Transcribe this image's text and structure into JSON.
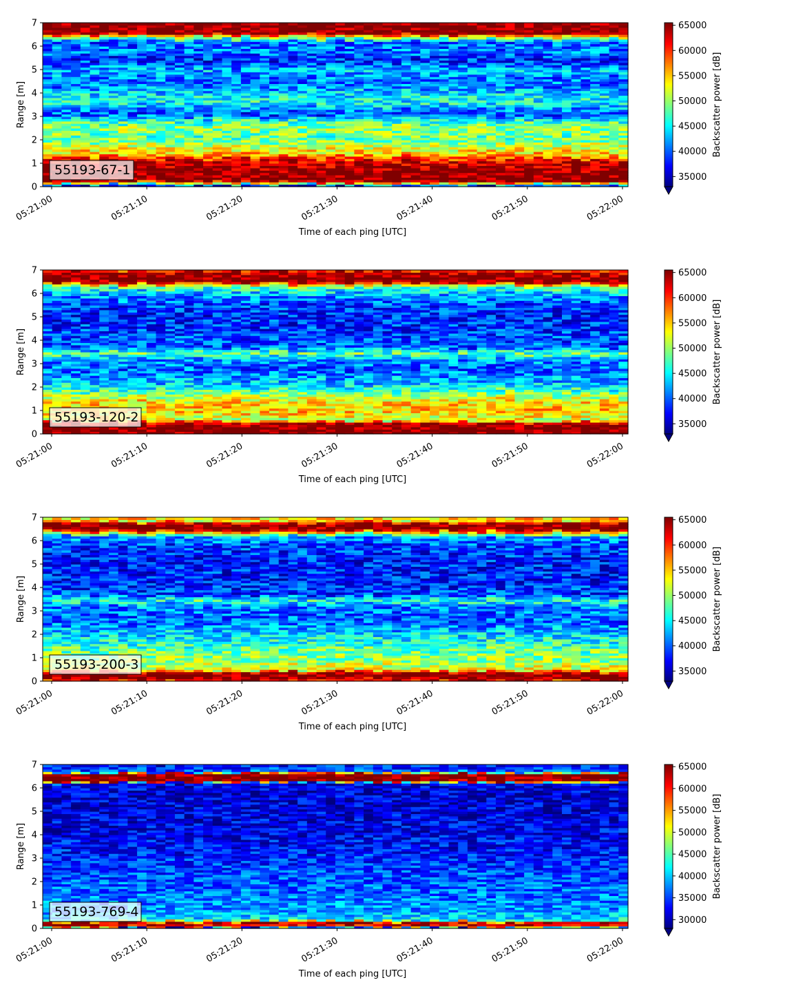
{
  "chart_data": [
    {
      "type": "heatmap",
      "label": "55193-67-1",
      "xlabel": "Time of each ping [UTC]",
      "ylabel": "Range [m]",
      "xticks": [
        "05:21:00",
        "05:21:10",
        "05:21:20",
        "05:21:30",
        "05:21:40",
        "05:21:50",
        "05:22:00"
      ],
      "xlim_seconds": [
        0,
        60.6
      ],
      "yticks": [
        0,
        1,
        2,
        3,
        4,
        5,
        6,
        7
      ],
      "ylim": [
        0,
        7
      ],
      "colorbar_label": "Backscatter power [dB]",
      "colorbar_ticks": [
        35000,
        40000,
        45000,
        50000,
        55000,
        60000,
        65000
      ],
      "colorbar_range": [
        33000,
        65500
      ],
      "colormap": "jet",
      "profile": [
        [
          0.0,
          33000
        ],
        [
          0.25,
          65500
        ],
        [
          0.6,
          65500
        ],
        [
          1.1,
          63000
        ],
        [
          1.35,
          56000
        ],
        [
          1.7,
          52000
        ],
        [
          2.1,
          48000
        ],
        [
          2.5,
          50000
        ],
        [
          2.8,
          47000
        ],
        [
          3.1,
          39000
        ],
        [
          3.4,
          43000
        ],
        [
          3.7,
          46000
        ],
        [
          4.0,
          44000
        ],
        [
          4.3,
          41000
        ],
        [
          4.7,
          41000
        ],
        [
          5.0,
          43000
        ],
        [
          5.4,
          38000
        ],
        [
          5.8,
          41000
        ],
        [
          6.2,
          40000
        ],
        [
          6.45,
          55000
        ],
        [
          6.55,
          65500
        ],
        [
          7.0,
          65500
        ]
      ]
    },
    {
      "type": "heatmap",
      "label": "55193-120-2",
      "xlabel": "Time of each ping [UTC]",
      "ylabel": "Range [m]",
      "xticks": [
        "05:21:00",
        "05:21:10",
        "05:21:20",
        "05:21:30",
        "05:21:40",
        "05:21:50",
        "05:22:00"
      ],
      "xlim_seconds": [
        0,
        60.6
      ],
      "yticks": [
        0,
        1,
        2,
        3,
        4,
        5,
        6,
        7
      ],
      "ylim": [
        0,
        7
      ],
      "colorbar_label": "Backscatter power [dB]",
      "colorbar_ticks": [
        35000,
        40000,
        45000,
        50000,
        55000,
        60000,
        65000
      ],
      "colorbar_range": [
        33000,
        65500
      ],
      "colormap": "jet",
      "profile": [
        [
          0.0,
          65500
        ],
        [
          0.45,
          65500
        ],
        [
          0.6,
          52000
        ],
        [
          1.0,
          55000
        ],
        [
          1.4,
          54000
        ],
        [
          1.8,
          48000
        ],
        [
          2.2,
          43000
        ],
        [
          2.8,
          40000
        ],
        [
          3.2,
          42000
        ],
        [
          3.45,
          49000
        ],
        [
          3.7,
          40000
        ],
        [
          4.3,
          39000
        ],
        [
          5.0,
          38000
        ],
        [
          5.5,
          39000
        ],
        [
          5.9,
          42000
        ],
        [
          6.2,
          46000
        ],
        [
          6.35,
          52000
        ],
        [
          6.5,
          65500
        ],
        [
          6.8,
          65500
        ],
        [
          7.0,
          60000
        ]
      ]
    },
    {
      "type": "heatmap",
      "label": "55193-200-3",
      "xlabel": "Time of each ping [UTC]",
      "ylabel": "Range [m]",
      "xticks": [
        "05:21:00",
        "05:21:10",
        "05:21:20",
        "05:21:30",
        "05:21:40",
        "05:21:50",
        "05:22:00"
      ],
      "xlim_seconds": [
        0,
        60.6
      ],
      "yticks": [
        0,
        1,
        2,
        3,
        4,
        5,
        6,
        7
      ],
      "ylim": [
        0,
        7
      ],
      "colorbar_label": "Backscatter power [dB]",
      "colorbar_ticks": [
        35000,
        40000,
        45000,
        50000,
        55000,
        60000,
        65000
      ],
      "colorbar_range": [
        33000,
        65500
      ],
      "colormap": "jet",
      "profile": [
        [
          0.0,
          60000
        ],
        [
          0.15,
          65500
        ],
        [
          0.35,
          65500
        ],
        [
          0.5,
          53000
        ],
        [
          0.9,
          50000
        ],
        [
          1.4,
          48000
        ],
        [
          2.0,
          44000
        ],
        [
          2.6,
          40000
        ],
        [
          3.2,
          41000
        ],
        [
          3.45,
          47000
        ],
        [
          3.7,
          39000
        ],
        [
          4.4,
          38000
        ],
        [
          5.2,
          38000
        ],
        [
          5.8,
          39000
        ],
        [
          6.2,
          43000
        ],
        [
          6.35,
          55000
        ],
        [
          6.5,
          65500
        ],
        [
          6.75,
          65500
        ],
        [
          6.85,
          52000
        ],
        [
          7.0,
          56000
        ]
      ]
    },
    {
      "type": "heatmap",
      "label": "55193-769-4",
      "xlabel": "Time of each ping [UTC]",
      "ylabel": "Range [m]",
      "xticks": [
        "05:21:00",
        "05:21:10",
        "05:21:20",
        "05:21:30",
        "05:21:40",
        "05:21:50",
        "05:22:00"
      ],
      "xlim_seconds": [
        0,
        60.6
      ],
      "yticks": [
        0,
        1,
        2,
        3,
        4,
        5,
        6,
        7
      ],
      "ylim": [
        0,
        7
      ],
      "colorbar_label": "Backscatter power [dB]",
      "colorbar_ticks": [
        30000,
        35000,
        40000,
        45000,
        50000,
        55000,
        60000,
        65000
      ],
      "colorbar_range": [
        28000,
        65500
      ],
      "colormap": "jet",
      "profile": [
        [
          0.0,
          28000
        ],
        [
          0.1,
          60000
        ],
        [
          0.25,
          65500
        ],
        [
          0.35,
          42000
        ],
        [
          0.8,
          38000
        ],
        [
          1.5,
          37000
        ],
        [
          2.5,
          35000
        ],
        [
          3.5,
          33000
        ],
        [
          4.5,
          32000
        ],
        [
          5.5,
          31000
        ],
        [
          6.2,
          32000
        ],
        [
          6.3,
          65500
        ],
        [
          6.6,
          65500
        ],
        [
          6.7,
          36000
        ],
        [
          7.0,
          33000
        ]
      ]
    }
  ]
}
